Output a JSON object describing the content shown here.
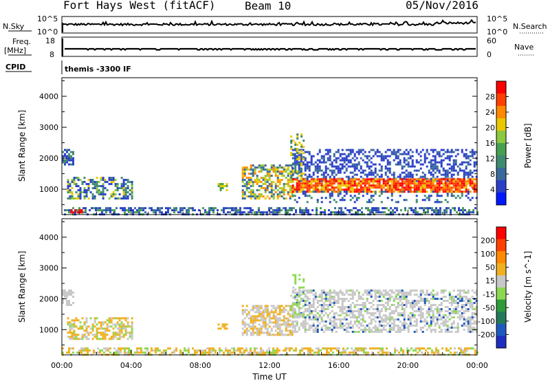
{
  "header": {
    "station": "Fort Hays West (fitACF)",
    "beam": "Beam 10",
    "date": "05/Nov/2016"
  },
  "left_labels": {
    "nsky": "N.Sky",
    "freq": "Freq.",
    "freq_unit": "[MHz]",
    "cpid": "CPID"
  },
  "right_labels": {
    "nsearch": "N.Search",
    "nave": "Nave"
  },
  "noise_panel": {
    "ticks_left": [
      "10^5",
      "10^0"
    ],
    "ticks_right": [
      "10^5",
      "10^0"
    ]
  },
  "freq_panel": {
    "ticks_left": [
      "18",
      "8"
    ],
    "ticks_right": [
      "60",
      "0"
    ]
  },
  "cpid_panel": {
    "text": "themis -3300 IF"
  },
  "chart_data": [
    {
      "type": "heatmap",
      "name": "power",
      "ylabel": "Slant Range [km]",
      "y_ticks": [
        "4000",
        "3000",
        "2000",
        "1000"
      ],
      "ylim": [
        180,
        4600
      ],
      "xlim": [
        0,
        24
      ],
      "colorbar_label": "Power [dB]",
      "colorbar_ticks": [
        "28",
        "24",
        "20",
        "16",
        "12",
        "8",
        "4"
      ],
      "colorbar_colors": [
        "#0018ff",
        "#2a40c8",
        "#3a6a9a",
        "#3f8a70",
        "#46a050",
        "#8cc840",
        "#e8c800",
        "#ff8a00",
        "#ff4000",
        "#ff0000"
      ]
    },
    {
      "type": "heatmap",
      "name": "velocity",
      "ylabel": "Slant Range [km]",
      "y_ticks": [
        "4000",
        "3000",
        "2000",
        "1000"
      ],
      "ylim": [
        180,
        4600
      ],
      "xlim": [
        0,
        24
      ],
      "colorbar_label": "Velocity [m s^-1]",
      "colorbar_ticks": [
        "200",
        "100",
        "50",
        "15",
        "-15",
        "-50",
        "-100",
        "-200"
      ],
      "colorbar_colors": [
        "#1e2ec0",
        "#1e5abe",
        "#237a5a",
        "#2e9a3a",
        "#8cd850",
        "#c8c8c8",
        "#f0b020",
        "#ff8a00",
        "#ff4000",
        "#ff0000"
      ]
    }
  ],
  "x_axis": {
    "ticks": [
      "00:00",
      "04:00",
      "08:00",
      "12:00",
      "16:00",
      "20:00",
      "00:00"
    ],
    "label": "Time UT"
  }
}
